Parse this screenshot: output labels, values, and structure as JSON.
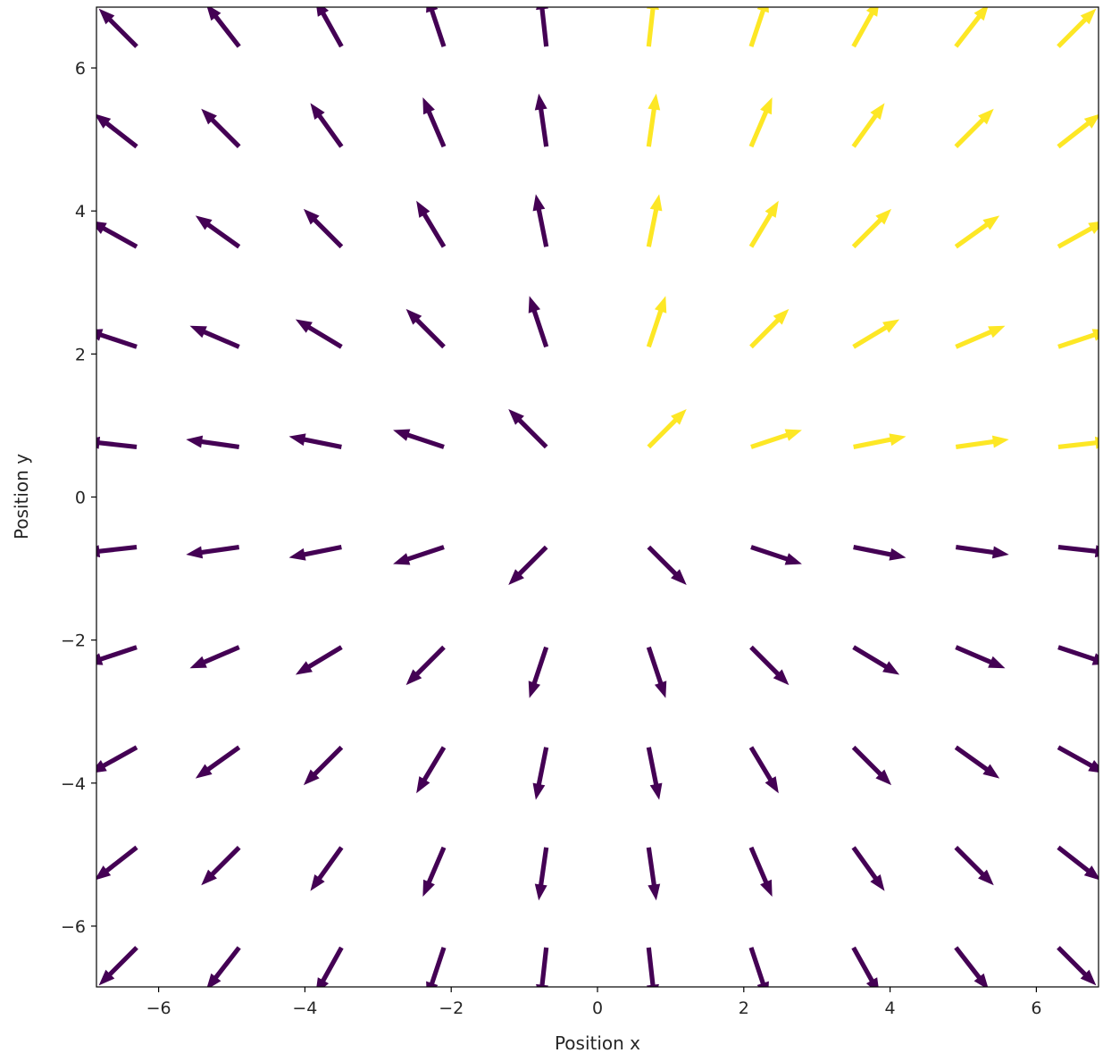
{
  "chart_data": {
    "type": "quiver",
    "title": "",
    "xlabel": "Position x",
    "ylabel": "Position y",
    "xlim": [
      -6.85,
      6.85
    ],
    "ylim": [
      -6.85,
      6.85
    ],
    "xticks": [
      -6,
      -4,
      -2,
      0,
      2,
      4,
      6
    ],
    "yticks": [
      -6,
      -4,
      -2,
      0,
      2,
      4,
      6
    ],
    "xtick_labels": [
      "−6",
      "−4",
      "−2",
      "0",
      "2",
      "4",
      "6"
    ],
    "ytick_labels": [
      "−6",
      "−4",
      "−2",
      "0",
      "2",
      "4",
      "6"
    ],
    "grid": false,
    "field": "unit vectors pointing radially outward from the origin, (x, y)/r",
    "x": [
      -6.3,
      -4.9,
      -3.5,
      -2.1,
      -0.7,
      0.7,
      2.1,
      3.5,
      4.9,
      6.3
    ],
    "y": [
      -6.3,
      -4.9,
      -3.5,
      -2.1,
      -0.7,
      0.7,
      2.1,
      3.5,
      4.9,
      6.3
    ],
    "highlight_rule": "x > 0 and y > 0",
    "colors": {
      "normal": "#440154",
      "highlight": "#fde725"
    }
  }
}
